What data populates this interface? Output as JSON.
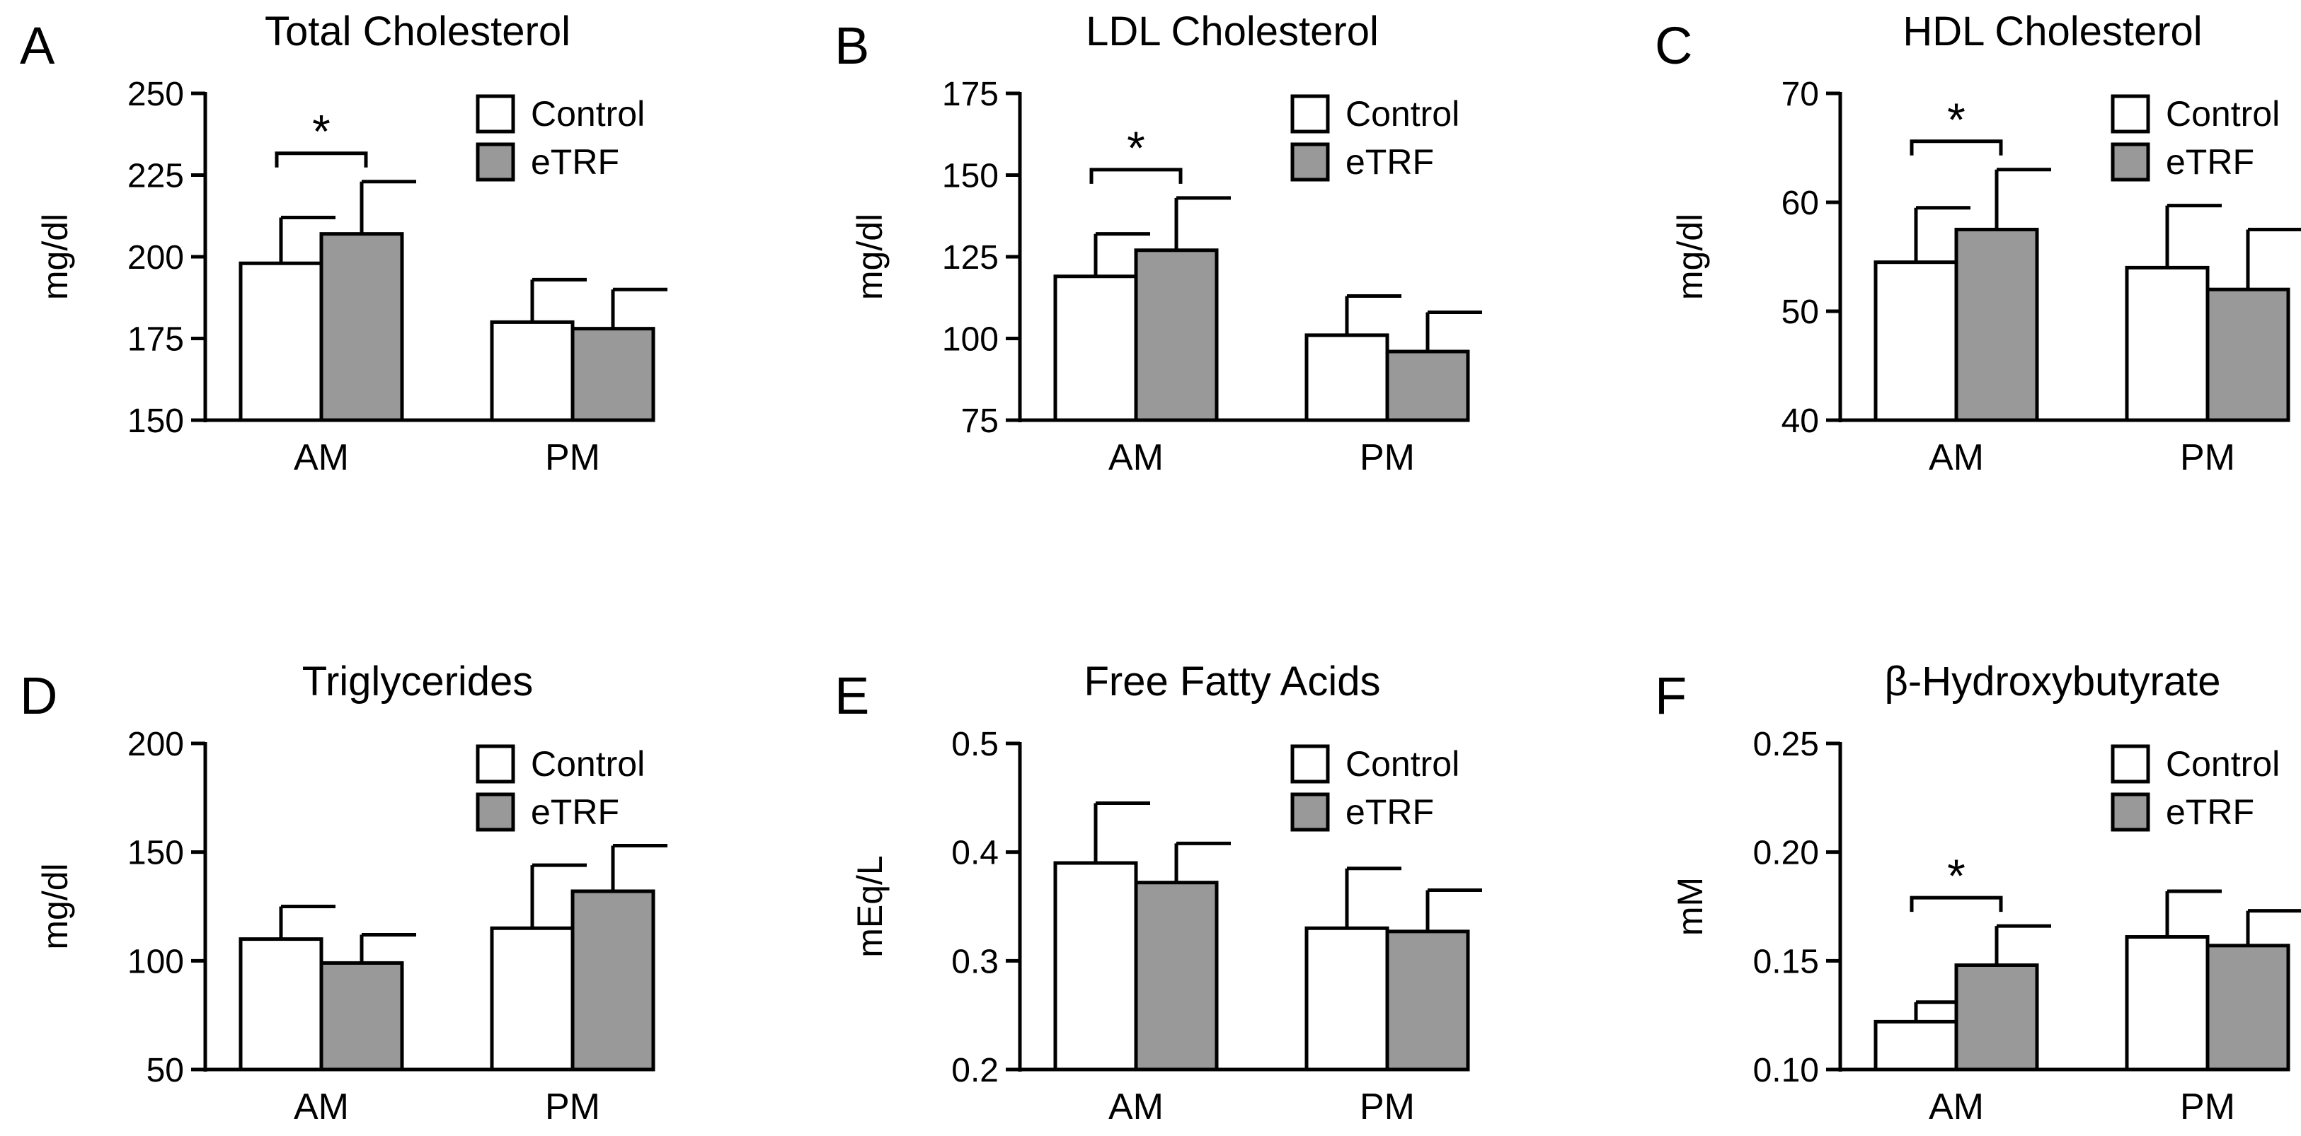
{
  "colors": {
    "control": "#ffffff",
    "etrf": "#999999",
    "ink": "#000000"
  },
  "chart_data": [
    {
      "letter": "A",
      "type": "bar",
      "title": "Total Cholesterol",
      "ylabel": "mg/dl",
      "categories": [
        "AM",
        "PM"
      ],
      "ylim": [
        150,
        250
      ],
      "ticks": [
        "150",
        "175",
        "200",
        "225",
        "250"
      ],
      "legend": [
        "Control",
        "eTRF"
      ],
      "series": [
        {
          "name": "Control",
          "values": [
            198,
            180
          ],
          "errors": [
            14,
            13
          ]
        },
        {
          "name": "eTRF",
          "values": [
            207,
            178
          ],
          "errors": [
            16,
            12
          ]
        }
      ],
      "significance": [
        {
          "category": "AM",
          "label": "*"
        }
      ]
    },
    {
      "letter": "B",
      "type": "bar",
      "title": "LDL Cholesterol",
      "ylabel": "mg/dl",
      "categories": [
        "AM",
        "PM"
      ],
      "ylim": [
        75,
        175
      ],
      "ticks": [
        "75",
        "100",
        "125",
        "150",
        "175"
      ],
      "legend": [
        "Control",
        "eTRF"
      ],
      "series": [
        {
          "name": "Control",
          "values": [
            119,
            101
          ],
          "errors": [
            13,
            12
          ]
        },
        {
          "name": "eTRF",
          "values": [
            127,
            96
          ],
          "errors": [
            16,
            12
          ]
        }
      ],
      "significance": [
        {
          "category": "AM",
          "label": "*"
        }
      ]
    },
    {
      "letter": "C",
      "type": "bar",
      "title": "HDL Cholesterol",
      "ylabel": "mg/dl",
      "categories": [
        "AM",
        "PM"
      ],
      "ylim": [
        40,
        70
      ],
      "ticks": [
        "40",
        "50",
        "60",
        "70"
      ],
      "legend": [
        "Control",
        "eTRF"
      ],
      "series": [
        {
          "name": "Control",
          "values": [
            54.5,
            54
          ],
          "errors": [
            5,
            5.7
          ]
        },
        {
          "name": "eTRF",
          "values": [
            57.5,
            52
          ],
          "errors": [
            5.5,
            5.5
          ]
        }
      ],
      "significance": [
        {
          "category": "AM",
          "label": "*"
        }
      ]
    },
    {
      "letter": "D",
      "type": "bar",
      "title": "Triglycerides",
      "ylabel": "mg/dl",
      "categories": [
        "AM",
        "PM"
      ],
      "ylim": [
        50,
        200
      ],
      "ticks": [
        "50",
        "100",
        "150",
        "200"
      ],
      "legend": [
        "Control",
        "eTRF"
      ],
      "series": [
        {
          "name": "Control",
          "values": [
            110,
            115
          ],
          "errors": [
            15,
            29
          ]
        },
        {
          "name": "eTRF",
          "values": [
            99,
            132
          ],
          "errors": [
            13,
            21
          ]
        }
      ],
      "significance": []
    },
    {
      "letter": "E",
      "type": "bar",
      "title": "Free Fatty Acids",
      "ylabel": "mEq/L",
      "categories": [
        "AM",
        "PM"
      ],
      "ylim": [
        0.2,
        0.5
      ],
      "ticks": [
        "0.2",
        "0.3",
        "0.4",
        "0.5"
      ],
      "legend": [
        "Control",
        "eTRF"
      ],
      "series": [
        {
          "name": "Control",
          "values": [
            0.39,
            0.33
          ],
          "errors": [
            0.055,
            0.055
          ]
        },
        {
          "name": "eTRF",
          "values": [
            0.372,
            0.327
          ],
          "errors": [
            0.036,
            0.038
          ]
        }
      ],
      "significance": []
    },
    {
      "letter": "F",
      "type": "bar",
      "title": "β-Hydroxybutyrate",
      "ylabel": "mM",
      "categories": [
        "AM",
        "PM"
      ],
      "ylim": [
        0.1,
        0.25
      ],
      "ticks": [
        "0.10",
        "0.15",
        "0.20",
        "0.25"
      ],
      "legend": [
        "Control",
        "eTRF"
      ],
      "series": [
        {
          "name": "Control",
          "values": [
            0.122,
            0.161
          ],
          "errors": [
            0.009,
            0.021
          ]
        },
        {
          "name": "eTRF",
          "values": [
            0.148,
            0.157
          ],
          "errors": [
            0.018,
            0.016
          ]
        }
      ],
      "significance": [
        {
          "category": "AM",
          "label": "*"
        }
      ]
    }
  ]
}
